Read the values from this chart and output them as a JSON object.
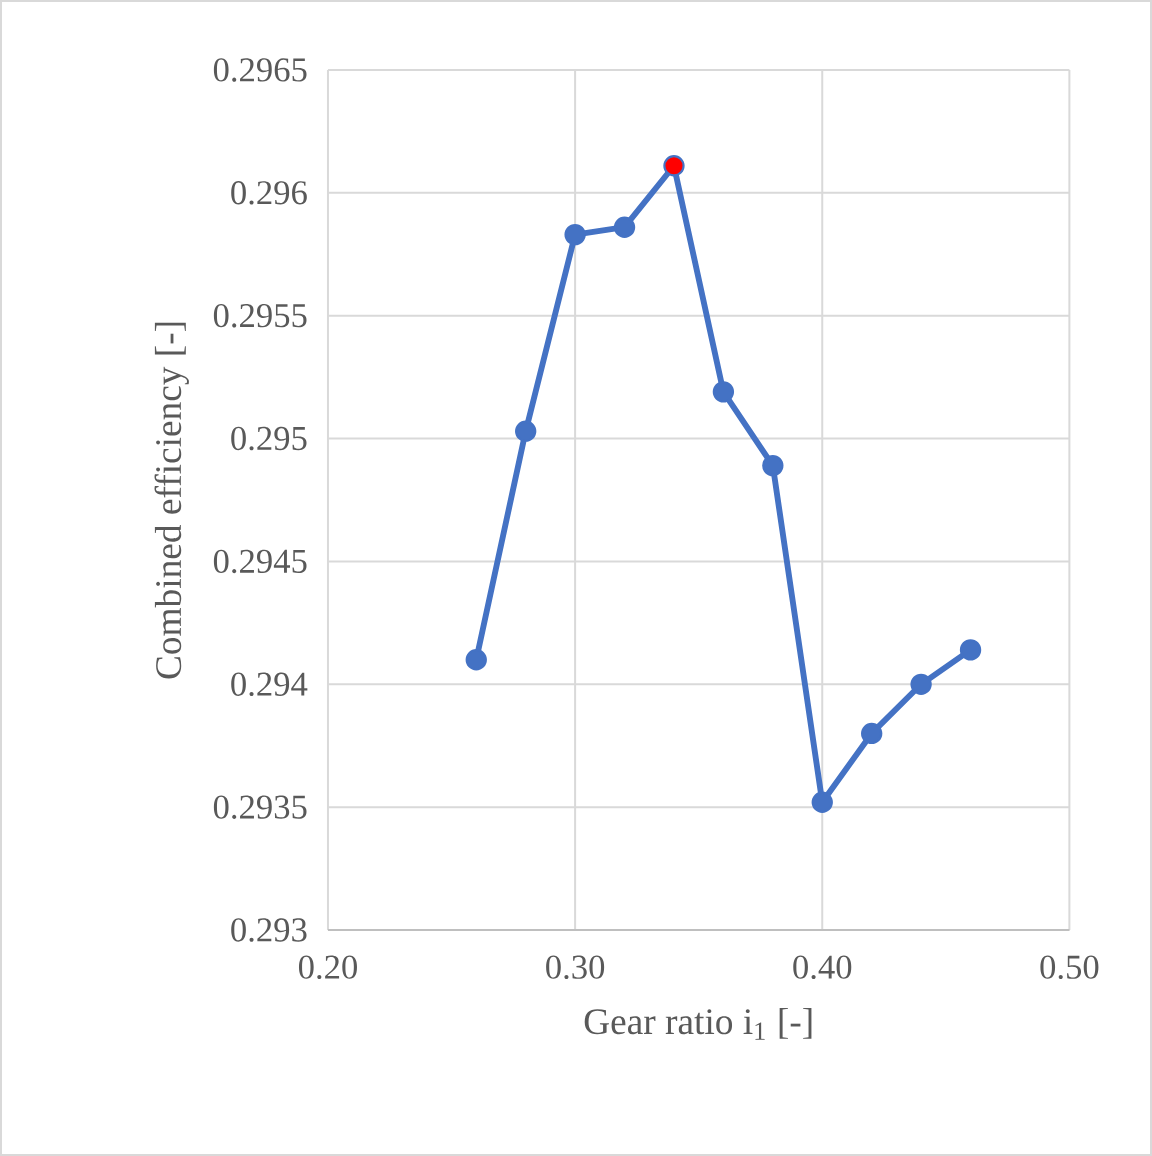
{
  "chart_data": {
    "type": "line",
    "xlabel": "Gear ratio i$_{1}$ [-]",
    "ylabel": "Combined efficiency  [-]",
    "x": [
      0.26,
      0.28,
      0.3,
      0.32,
      0.34,
      0.36,
      0.38,
      0.4,
      0.42,
      0.44,
      0.46
    ],
    "series": [
      {
        "color": "#4472c4",
        "values": [
          0.2941,
          0.29503,
          0.29583,
          0.29586,
          0.29611,
          0.29519,
          0.29489,
          0.29352,
          0.2938,
          0.294,
          0.29414
        ],
        "colors": [
          "#4472c4",
          "#4472c4",
          "#4472c4",
          "#4472c4",
          "#ff0000",
          "#4472c4",
          "#4472c4",
          "#4472c4",
          "#4472c4",
          "#4472c4",
          "#4472c4"
        ]
      }
    ],
    "xlim": [
      0.2,
      0.5
    ],
    "ylim": [
      0.293,
      0.2965
    ],
    "xticks": [
      {
        "value": 0.2,
        "label": "0.20"
      },
      {
        "value": 0.3,
        "label": "0.30"
      },
      {
        "value": 0.4,
        "label": "0.40"
      },
      {
        "value": 0.5,
        "label": "0.50"
      }
    ],
    "yticks": [
      0.293,
      0.2935,
      0.294,
      0.2945,
      0.295,
      0.2955,
      0.296,
      0.2965
    ],
    "grid": true,
    "marker": "circle",
    "line_style": "solid"
  }
}
